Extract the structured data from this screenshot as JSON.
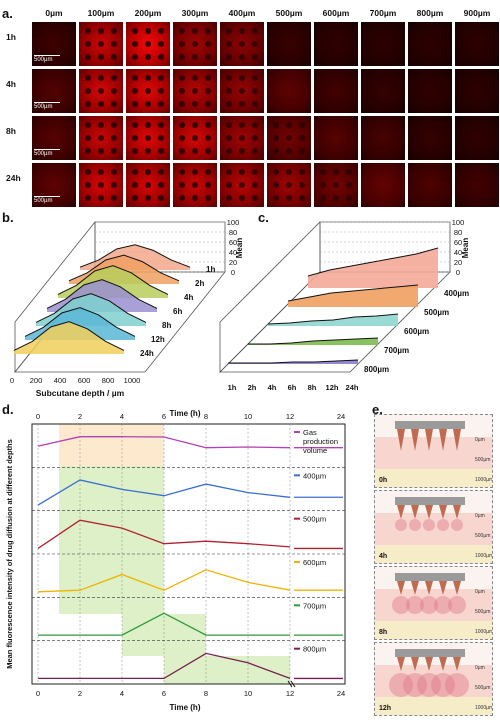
{
  "panel_letters": {
    "a": "a.",
    "b": "b.",
    "c": "c.",
    "d": "d.",
    "e": "e."
  },
  "panel_a": {
    "columns": [
      "0µm",
      "100µm",
      "200µm",
      "300µm",
      "400µm",
      "500µm",
      "600µm",
      "700µm",
      "800µm",
      "900µm"
    ],
    "rows": [
      "1h",
      "4h",
      "8h",
      "24h"
    ],
    "scale_bar": "500µm",
    "intensity": [
      [
        0.1,
        0.75,
        0.95,
        0.55,
        0.45,
        0.08,
        0.04,
        0.03,
        0.03,
        0.03
      ],
      [
        0.2,
        0.8,
        0.85,
        0.65,
        0.5,
        0.25,
        0.12,
        0.06,
        0.04,
        0.03
      ],
      [
        0.22,
        0.75,
        0.85,
        0.8,
        0.55,
        0.35,
        0.22,
        0.15,
        0.06,
        0.04
      ],
      [
        0.25,
        0.8,
        0.8,
        0.75,
        0.65,
        0.55,
        0.35,
        0.28,
        0.18,
        0.12
      ]
    ]
  },
  "panel_b": {
    "xlabel": "Subcutane depth / µm",
    "x_ticks": [
      "0",
      "200",
      "400",
      "600",
      "800",
      "1000"
    ],
    "z_label": "Mean",
    "z_ticks": [
      "0",
      "20",
      "40",
      "60",
      "80",
      "100"
    ],
    "series": [
      "1h",
      "2h",
      "4h",
      "6h",
      "8h",
      "12h",
      "24h"
    ],
    "colors": [
      "#f3a88c",
      "#f0a060",
      "#b7cc5a",
      "#9a8fd0",
      "#7fd0cf",
      "#59b7d6",
      "#f0cf5c"
    ]
  },
  "panel_c": {
    "x_ticks": [
      "1h",
      "2h",
      "4h",
      "6h",
      "8h",
      "12h",
      "24h"
    ],
    "z_label": "Mean",
    "z_ticks": [
      "0",
      "20",
      "40",
      "60",
      "80",
      "100"
    ],
    "series": [
      "400µm",
      "500µm",
      "600µm",
      "700µm",
      "800µm"
    ],
    "colors": [
      "#f4a898",
      "#f0a060",
      "#8fd6cf",
      "#7dbb4e",
      "#8a7cd0"
    ]
  },
  "panel_d": {
    "top_axis_label": "Time (h)",
    "bottom_axis_label": "Time (h)",
    "x_ticks": [
      "0",
      "2",
      "4",
      "6",
      "8",
      "10",
      "12",
      "24"
    ],
    "ylabel": "Mean fluorescence intensity of drug diffusion at different depths",
    "series": [
      {
        "name": "Gas production volume",
        "color": "#b441b4",
        "values": [
          0.55,
          0.85,
          0.85,
          0.84,
          0.5,
          0.52,
          0.5,
          0.5
        ]
      },
      {
        "name": "400µm",
        "color": "#3a6fd0",
        "values": [
          0.05,
          0.85,
          0.55,
          0.35,
          0.72,
          0.45,
          0.3,
          0.3
        ]
      },
      {
        "name": "500µm",
        "color": "#b02230",
        "values": [
          0.05,
          0.95,
          0.7,
          0.2,
          0.28,
          0.2,
          0.1,
          0.05
        ]
      },
      {
        "name": "600µm",
        "color": "#f0b400",
        "values": [
          0.05,
          0.1,
          0.6,
          0.1,
          0.75,
          0.35,
          0.1,
          0.1
        ]
      },
      {
        "name": "700µm",
        "color": "#2f9a3a",
        "values": [
          0.05,
          0.05,
          0.05,
          0.75,
          0.05,
          0.05,
          0.05,
          0.05
        ]
      },
      {
        "name": "800µm",
        "color": "#7a1e50",
        "values": [
          0.05,
          0.05,
          0.05,
          0.05,
          0.85,
          0.55,
          0.05,
          0.05
        ]
      }
    ]
  },
  "panel_e": {
    "times": [
      "0h",
      "4h",
      "8h",
      "12h"
    ],
    "depth_labels": [
      "0µm",
      "500µm",
      "1000µm"
    ]
  }
}
